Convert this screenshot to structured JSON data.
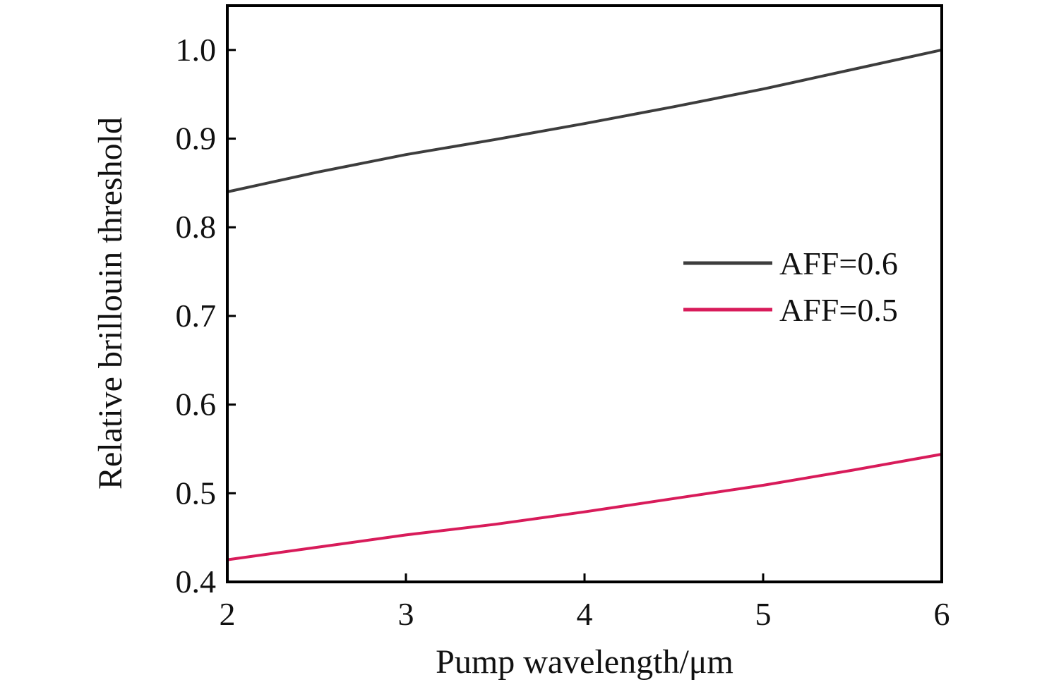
{
  "chart_data": {
    "type": "line",
    "title": "",
    "xlabel": "Pump wavelength/μm",
    "ylabel": "Relative brillouin threshold",
    "xlim": [
      2,
      6
    ],
    "ylim": [
      0.4,
      1.05
    ],
    "xticks": [
      2,
      3,
      4,
      5,
      6
    ],
    "xtick_labels": [
      "2",
      "3",
      "4",
      "5",
      "6"
    ],
    "yticks": [
      0.4,
      0.5,
      0.6,
      0.7,
      0.8,
      0.9,
      1.0
    ],
    "ytick_labels": [
      "0.4",
      "0.5",
      "0.6",
      "0.7",
      "0.8",
      "0.9",
      "1.0"
    ],
    "grid": false,
    "legend_position": "right",
    "series": [
      {
        "name": "AFF=0.6",
        "color": "#3d3d3d",
        "x": [
          2.0,
          2.5,
          3.0,
          3.5,
          4.0,
          4.5,
          5.0,
          5.5,
          6.0
        ],
        "y": [
          0.84,
          0.862,
          0.882,
          0.899,
          0.917,
          0.936,
          0.956,
          0.978,
          1.0
        ]
      },
      {
        "name": "AFF=0.5",
        "color": "#d81b5a",
        "x": [
          2.0,
          2.5,
          3.0,
          3.5,
          4.0,
          4.5,
          5.0,
          5.5,
          6.0
        ],
        "y": [
          0.425,
          0.439,
          0.453,
          0.465,
          0.479,
          0.494,
          0.509,
          0.526,
          0.544
        ]
      }
    ]
  }
}
